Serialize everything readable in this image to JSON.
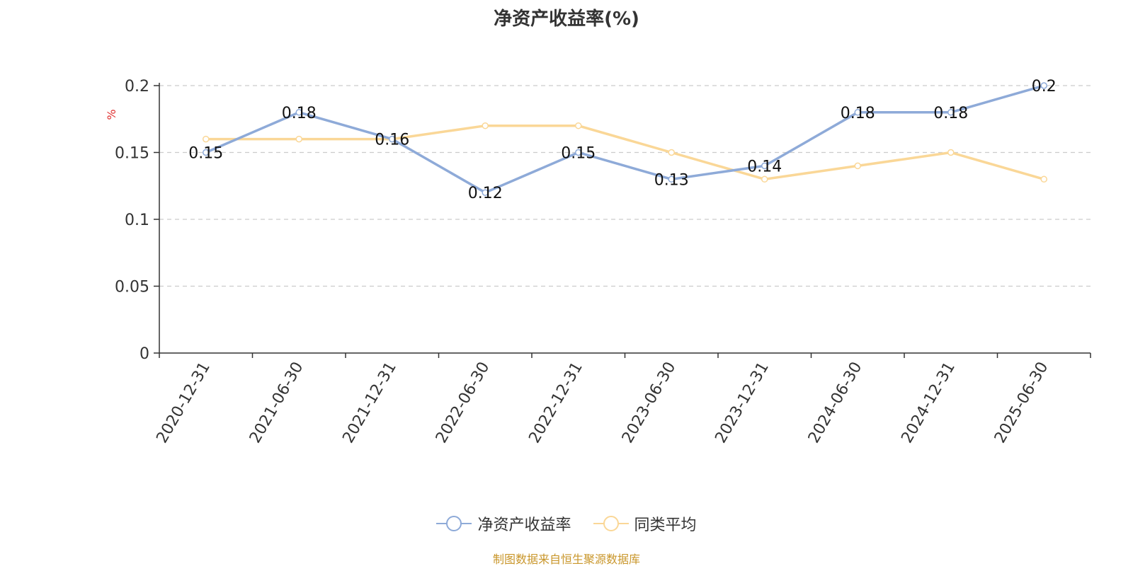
{
  "title": "净资产收益率(%)",
  "source": "制图数据来自恒生聚源数据库",
  "chart_data": {
    "type": "line",
    "categories": [
      "2020-12-31",
      "2021-06-30",
      "2021-12-31",
      "2022-06-30",
      "2022-12-31",
      "2023-06-30",
      "2023-12-31",
      "2024-06-30",
      "2024-12-31",
      "2025-06-30"
    ],
    "ylabel": "%",
    "ylim": [
      0,
      0.2
    ],
    "yticks": [
      0,
      0.05,
      0.1,
      0.15,
      0.2
    ],
    "ytick_labels": [
      "0",
      "0.05",
      "0.1",
      "0.15",
      "0.2"
    ],
    "grid": true,
    "legend_position": "bottom-center",
    "series": [
      {
        "name": "净资产收益率",
        "color": "#8eaad8",
        "values": [
          0.15,
          0.18,
          0.16,
          0.12,
          0.15,
          0.13,
          0.14,
          0.18,
          0.18,
          0.2
        ],
        "labels": [
          "0.15",
          "0.18",
          "0.16",
          "0.12",
          "0.15",
          "0.13",
          "0.14",
          "0.18",
          "0.18",
          "0.2"
        ]
      },
      {
        "name": "同类平均",
        "color": "#fad797",
        "values": [
          0.16,
          0.16,
          0.16,
          0.17,
          0.17,
          0.15,
          0.13,
          0.14,
          0.15,
          0.13
        ]
      }
    ]
  }
}
